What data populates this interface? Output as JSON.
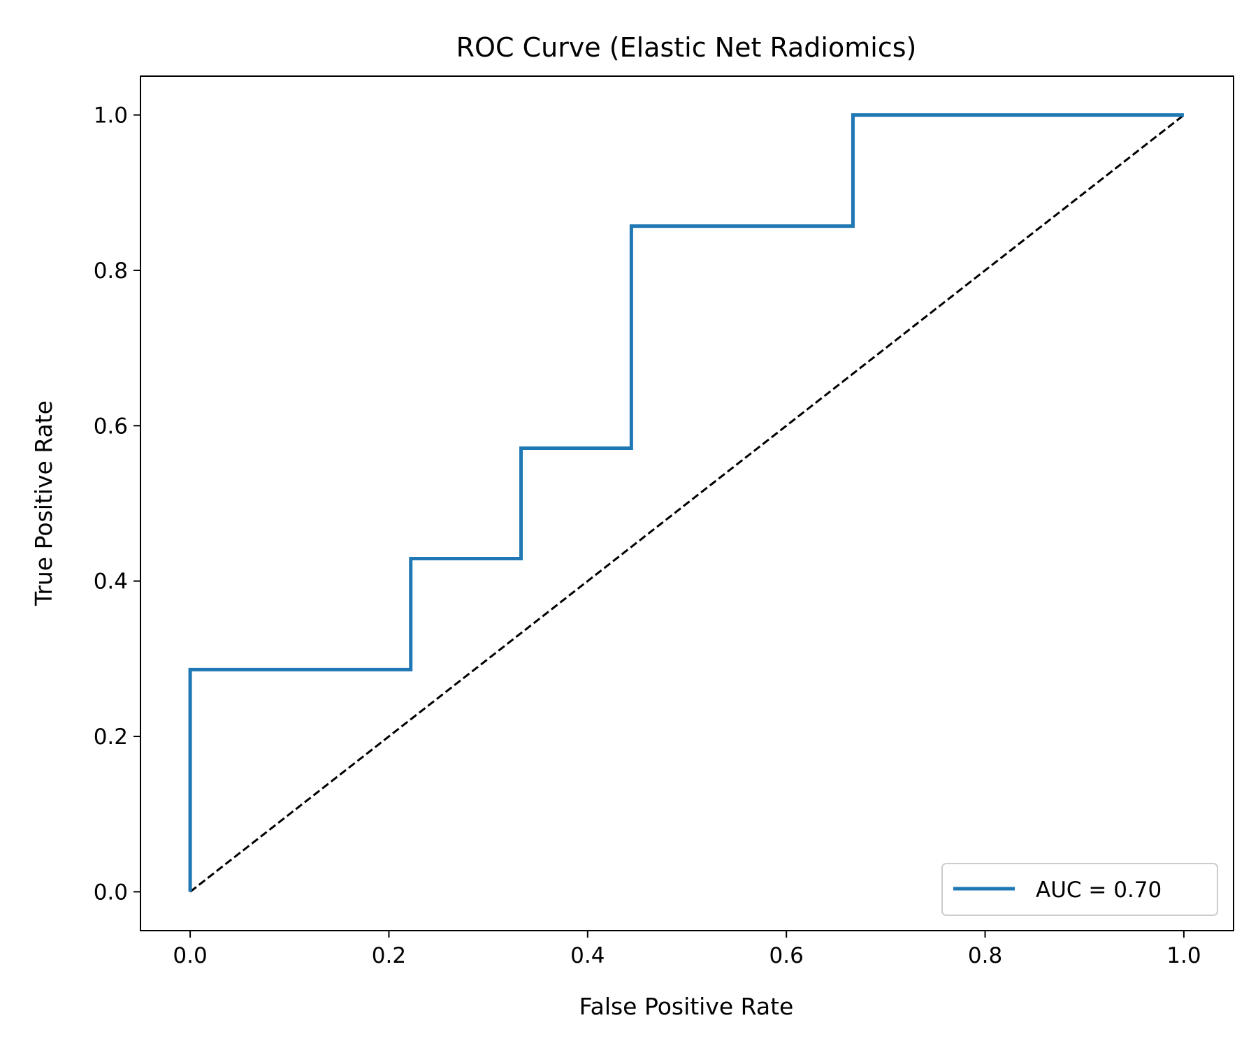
{
  "chart_data": {
    "type": "line",
    "title": "ROC Curve (Elastic Net Radiomics)",
    "xlabel": "False Positive Rate",
    "ylabel": "True Positive Rate",
    "xlim": [
      -0.05,
      1.05
    ],
    "ylim": [
      -0.05,
      1.05
    ],
    "xticks": [
      0.0,
      0.2,
      0.4,
      0.6,
      0.8,
      1.0
    ],
    "yticks": [
      0.0,
      0.2,
      0.4,
      0.6,
      0.8,
      1.0
    ],
    "xtick_labels": [
      "0.0",
      "0.2",
      "0.4",
      "0.6",
      "0.8",
      "1.0"
    ],
    "ytick_labels": [
      "0.0",
      "0.2",
      "0.4",
      "0.6",
      "0.8",
      "1.0"
    ],
    "grid": false,
    "legend_position": "lower-right",
    "series": [
      {
        "name": "AUC = 0.70",
        "color": "#1f77b4",
        "style": "solid",
        "x": [
          0.0,
          0.0,
          0.222,
          0.222,
          0.333,
          0.333,
          0.444,
          0.444,
          0.667,
          0.667,
          1.0
        ],
        "y": [
          0.0,
          0.286,
          0.286,
          0.429,
          0.429,
          0.571,
          0.571,
          0.857,
          0.857,
          1.0,
          1.0
        ]
      },
      {
        "name": "",
        "color": "#000000",
        "style": "dashed",
        "x": [
          0.0,
          1.0
        ],
        "y": [
          0.0,
          1.0
        ]
      }
    ]
  }
}
